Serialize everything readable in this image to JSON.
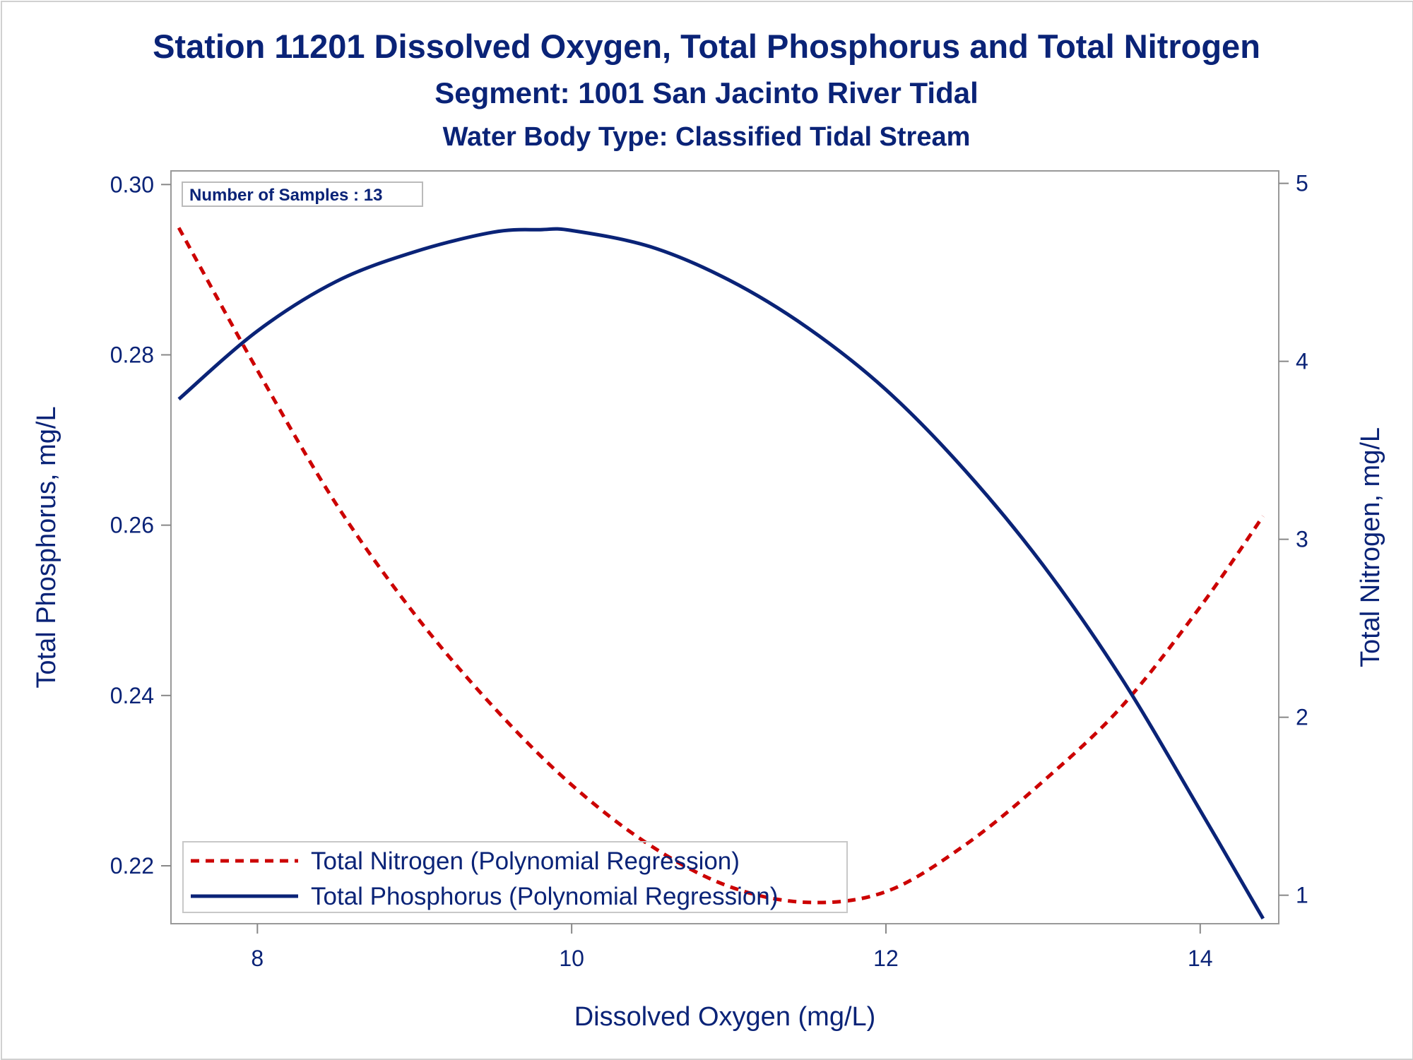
{
  "chart_data": {
    "type": "line",
    "title": "Station 11201  Dissolved Oxygen, Total Phosphorus and Total Nitrogen",
    "subtitle": "Segment: 1001  San Jacinto River Tidal",
    "subtitle2": "Water Body Type: Classified Tidal Stream",
    "xlabel": "Dissolved Oxygen (mg/L)",
    "ylabel_left": "Total Phosphorus, mg/L",
    "ylabel_right": "Total Nitrogen, mg/L",
    "xlim": [
      7.45,
      14.5
    ],
    "ylim_left": [
      0.2132,
      0.3016
    ],
    "ylim_right": [
      0.84,
      5.07
    ],
    "x_ticks": [
      "8",
      "10",
      "12",
      "14"
    ],
    "y_left_ticks": [
      "0.22",
      "0.24",
      "0.26",
      "0.28",
      "0.30"
    ],
    "y_right_ticks": [
      "1",
      "2",
      "3",
      "4",
      "5"
    ],
    "inset_label": "Number of Samples : 13",
    "legend_position": "bottom-left",
    "grid": false,
    "series": [
      {
        "name": "Total Nitrogen (Polynomial Regression)",
        "axis": "right",
        "style": "dashed",
        "color": "#cc0000",
        "x": [
          7.5,
          8.0,
          8.5,
          9.0,
          9.5,
          10.0,
          10.5,
          11.0,
          11.5,
          12.0,
          12.5,
          13.0,
          13.5,
          14.0,
          14.4
        ],
        "y": [
          4.75,
          3.95,
          3.2,
          2.58,
          2.06,
          1.62,
          1.28,
          1.05,
          0.96,
          1.02,
          1.28,
          1.64,
          2.06,
          2.62,
          3.13
        ]
      },
      {
        "name": "Total Phosphorus (Polynomial Regression)",
        "axis": "left",
        "style": "solid",
        "color": "#0a2377",
        "x": [
          7.5,
          8.0,
          8.5,
          9.0,
          9.5,
          9.8,
          10.0,
          10.5,
          11.0,
          11.5,
          12.0,
          12.5,
          13.0,
          13.5,
          14.0,
          14.4
        ],
        "y": [
          0.2748,
          0.2828,
          0.2886,
          0.2921,
          0.2944,
          0.2947,
          0.2946,
          0.2927,
          0.2888,
          0.2832,
          0.2759,
          0.2665,
          0.2553,
          0.242,
          0.2265,
          0.2138
        ]
      }
    ]
  }
}
